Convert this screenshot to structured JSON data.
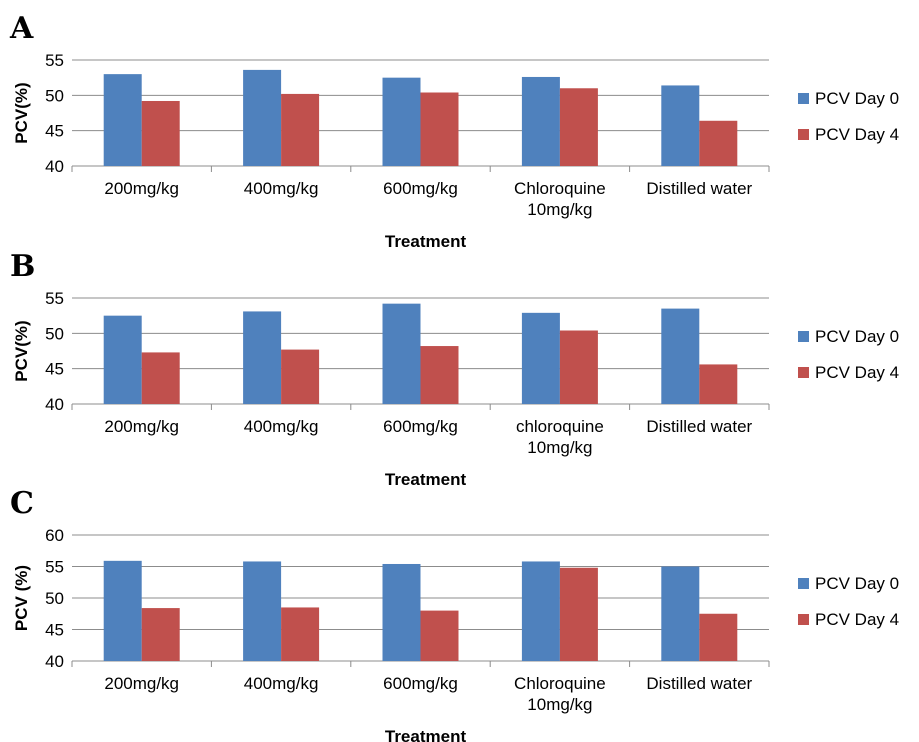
{
  "colors": {
    "day0": "#4f81bd",
    "day4": "#c0504d"
  },
  "chart_data": [
    {
      "type": "bar",
      "panel_label": "A",
      "categories": [
        "200mg/kg",
        "400mg/kg",
        "600mg/kg",
        [
          "Chloroquine",
          "10mg/kg"
        ],
        "Distilled water"
      ],
      "series": [
        {
          "name": "PCV Day 0",
          "values": [
            53.0,
            53.6,
            52.5,
            52.6,
            51.4
          ]
        },
        {
          "name": "PCV Day 4",
          "values": [
            49.2,
            50.2,
            50.4,
            51.0,
            46.4
          ]
        }
      ],
      "xlabel": "Treatment",
      "ylabel": "PCV(%)",
      "ylim": [
        40,
        55
      ],
      "yticks": [
        40,
        45,
        50,
        55
      ],
      "legend_position": "right",
      "grid": true
    },
    {
      "type": "bar",
      "panel_label": "B",
      "categories": [
        "200mg/kg",
        "400mg/kg",
        "600mg/kg",
        [
          "chloroquine",
          "10mg/kg"
        ],
        "Distilled water"
      ],
      "series": [
        {
          "name": "PCV Day 0",
          "values": [
            52.5,
            53.1,
            54.2,
            52.9,
            53.5
          ]
        },
        {
          "name": "PCV Day 4",
          "values": [
            47.3,
            47.7,
            48.2,
            50.4,
            45.6
          ]
        }
      ],
      "xlabel": "Treatment",
      "ylabel": "PCV(%)",
      "ylim": [
        40,
        55
      ],
      "yticks": [
        40,
        45,
        50,
        55
      ],
      "legend_position": "right",
      "grid": true
    },
    {
      "type": "bar",
      "panel_label": "C",
      "categories": [
        "200mg/kg",
        "400mg/kg",
        "600mg/kg",
        [
          "Chloroquine",
          "10mg/kg"
        ],
        "Distilled water"
      ],
      "series": [
        {
          "name": "PCV Day 0",
          "values": [
            55.9,
            55.8,
            55.4,
            55.8,
            55.0
          ]
        },
        {
          "name": "PCV Day 4",
          "values": [
            48.4,
            48.5,
            48.0,
            54.8,
            47.5
          ]
        }
      ],
      "xlabel": "Treatment",
      "ylabel": "PCV (%)",
      "ylim": [
        40,
        60
      ],
      "yticks": [
        40,
        45,
        50,
        55,
        60
      ],
      "legend_position": "right",
      "grid": true
    }
  ]
}
